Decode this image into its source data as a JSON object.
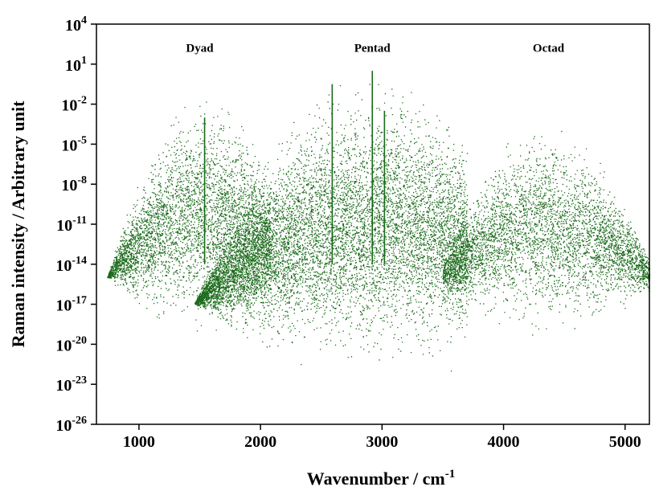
{
  "chart_data": {
    "type": "scatter",
    "title": "",
    "xlabel": "Wavenumber / cm",
    "xlabel_superscript": "-1",
    "ylabel": "Raman intensity / Arbitrary unit",
    "xlim": [
      650,
      5200
    ],
    "ylim_log10": [
      -26,
      4
    ],
    "yscale": "log",
    "grid": false,
    "marker_color": "#1a6b1a",
    "x_ticks": [
      {
        "value": 1000,
        "label": "1000"
      },
      {
        "value": 2000,
        "label": "2000"
      },
      {
        "value": 3000,
        "label": "3000"
      },
      {
        "value": 4000,
        "label": "4000"
      },
      {
        "value": 5000,
        "label": "5000"
      }
    ],
    "y_ticks": [
      {
        "exp": 4,
        "base": "10",
        "sup": "4"
      },
      {
        "exp": 1,
        "base": "10",
        "sup": "1"
      },
      {
        "exp": -2,
        "base": "10",
        "sup": "-2"
      },
      {
        "exp": -5,
        "base": "10",
        "sup": "-5"
      },
      {
        "exp": -8,
        "base": "10",
        "sup": "-8"
      },
      {
        "exp": -11,
        "base": "10",
        "sup": "-11"
      },
      {
        "exp": -14,
        "base": "10",
        "sup": "-14"
      },
      {
        "exp": -17,
        "base": "10",
        "sup": "-17"
      },
      {
        "exp": -20,
        "base": "10",
        "sup": "-20"
      },
      {
        "exp": -23,
        "base": "10",
        "sup": "-23"
      },
      {
        "exp": -26,
        "base": "10",
        "sup": "-26"
      }
    ],
    "annotations": [
      {
        "text": "Dyad",
        "x": 1500,
        "y_log10": 3
      },
      {
        "text": "Pentad",
        "x": 2920,
        "y_log10": 3
      },
      {
        "text": "Octad",
        "x": 4370,
        "y_log10": 3
      }
    ],
    "series": [
      {
        "envelopes": [
          {
            "region": "Dyad",
            "x_range": [
              680,
              2080
            ],
            "peak_x": 1550,
            "peak_log10": -1.5,
            "floor_log10": -19
          },
          {
            "region": "Pentad",
            "x_range": [
              1450,
              3700
            ],
            "peak_x": 2920,
            "peak_log10": 0,
            "floor_log10": -22
          },
          {
            "region": "Octad",
            "x_range": [
              3500,
              5200
            ],
            "peak_x": 4350,
            "peak_log10": -3.5,
            "floor_log10": -19
          }
        ],
        "strong_lines": [
          {
            "x": 1540,
            "y_log10": -3
          },
          {
            "x": 2590,
            "y_log10": -0.5
          },
          {
            "x": 2920,
            "y_log10": 0.5
          },
          {
            "x": 3020,
            "y_log10": -2.5
          }
        ]
      }
    ]
  }
}
